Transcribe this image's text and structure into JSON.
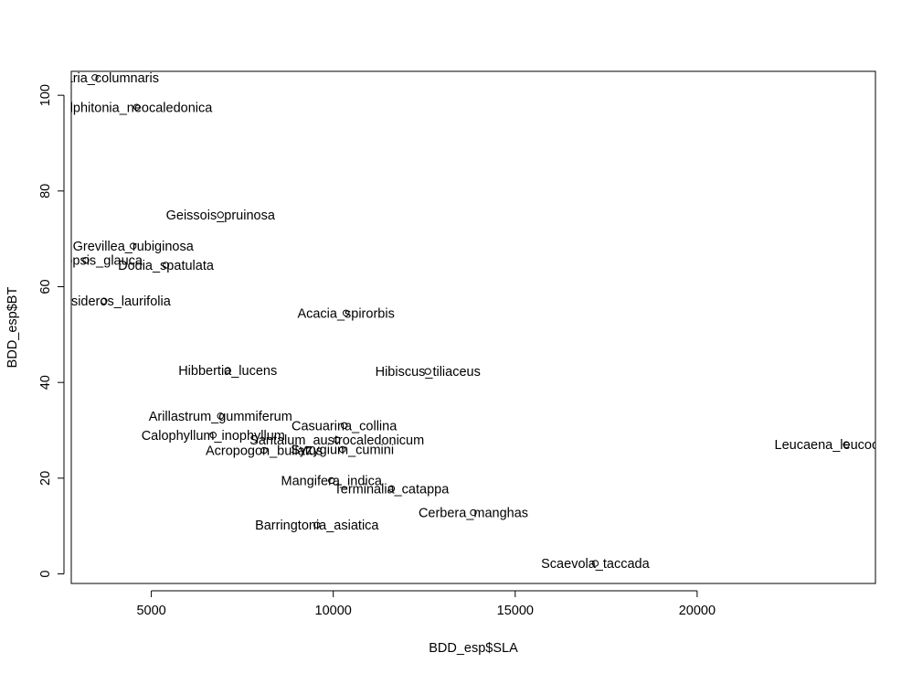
{
  "chart_data": {
    "type": "scatter",
    "title": "",
    "xlabel": "BDD_esp$SLA",
    "ylabel": "BDD_esp$BT",
    "xlim": [
      2800,
      24900
    ],
    "ylim": [
      -2,
      105
    ],
    "x_ticks": [
      5000,
      10000,
      15000,
      20000
    ],
    "x_tick_labels": [
      "5000",
      "10000",
      "15000",
      "20000"
    ],
    "y_ticks": [
      0,
      20,
      40,
      60,
      80,
      100
    ],
    "y_tick_labels": [
      "0",
      "20",
      "40",
      "60",
      "80",
      "100"
    ],
    "grid": false,
    "legend": "none",
    "points": [
      {
        "label": "Araucaria_columnaris",
        "x": 3450,
        "y": 103.7
      },
      {
        "label": "Alphitonia_neocaledonica",
        "x": 4600,
        "y": 97.5
      },
      {
        "label": "Geissois_pruinosa",
        "x": 6900,
        "y": 75
      },
      {
        "label": "Grevillea_rubiginosa",
        "x": 4500,
        "y": 68.5
      },
      {
        "label": "Manniopsis_glauca",
        "x": 3200,
        "y": 65.5
      },
      {
        "label": "Dodia_spatulata",
        "x": 5400,
        "y": 64.5
      },
      {
        "label": "Metrosideros_laurifolia",
        "x": 3700,
        "y": 57
      },
      {
        "label": "Acacia_spirorbis",
        "x": 10350,
        "y": 54.5
      },
      {
        "label": "Hibbertia_lucens",
        "x": 7100,
        "y": 42.5
      },
      {
        "label": "Hibiscus_tiliaceus",
        "x": 12600,
        "y": 42.3
      },
      {
        "label": "Arillastrum_gummiferum",
        "x": 6900,
        "y": 33
      },
      {
        "label": "Casuarina_collina",
        "x": 10300,
        "y": 31
      },
      {
        "label": "Calophyllum_inophyllum",
        "x": 6700,
        "y": 29
      },
      {
        "label": "Santalum_austrocaledonicum",
        "x": 10100,
        "y": 28
      },
      {
        "label": "Acropogon_bullatus",
        "x": 8100,
        "y": 25.8
      },
      {
        "label": "Syzygium_cumini",
        "x": 10250,
        "y": 26
      },
      {
        "label": "Leucaena_leucocephala",
        "x": 24100,
        "y": 27
      },
      {
        "label": "Mangifera_indica",
        "x": 9950,
        "y": 19.5
      },
      {
        "label": "Terminalia_catappa",
        "x": 11600,
        "y": 17.8
      },
      {
        "label": "Cerbera_manghas",
        "x": 13850,
        "y": 12.8
      },
      {
        "label": "Barringtonia_asiatica",
        "x": 9550,
        "y": 10.2
      },
      {
        "label": "Scaevola_taccada",
        "x": 17200,
        "y": 2.2
      }
    ]
  }
}
